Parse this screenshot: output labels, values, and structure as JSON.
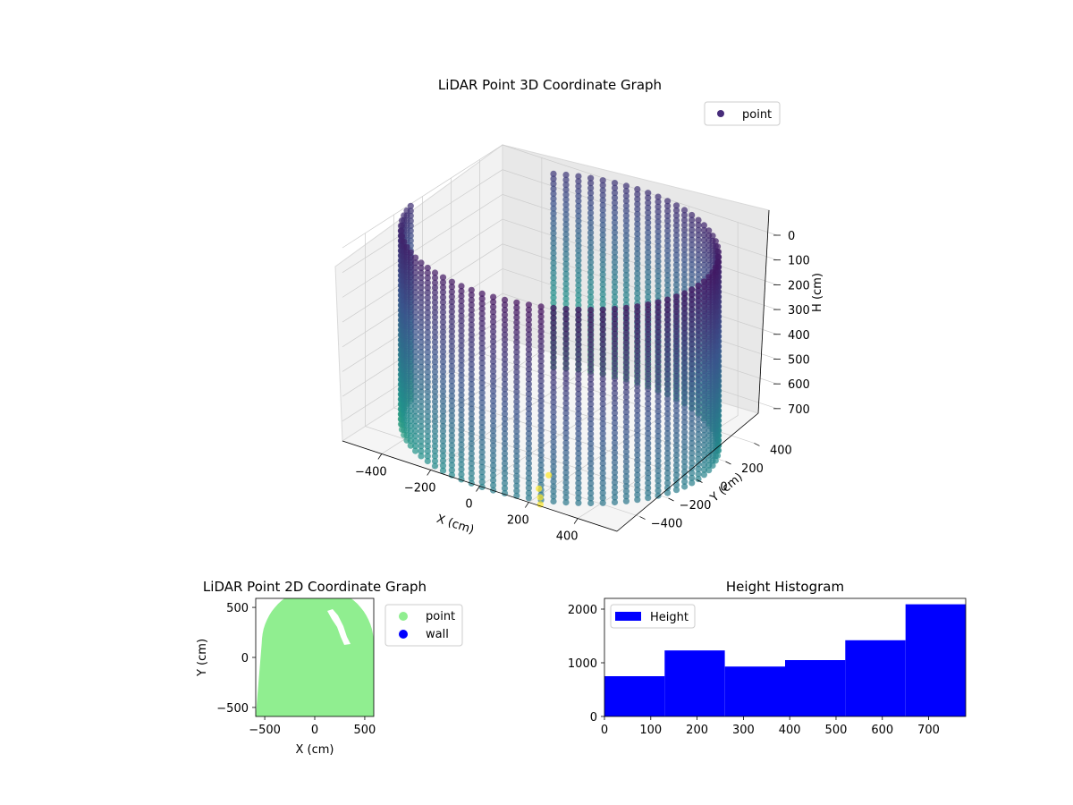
{
  "colors": {
    "scatter_cmap": [
      "#440154",
      "#3b528b",
      "#21918c",
      "#5ec962",
      "#fde725"
    ],
    "legend_point_3d": "#472c7a",
    "point_2d": "#90ee90",
    "wall_2d": "#0000ff",
    "histogram": "#0000ff"
  },
  "chart_data": [
    {
      "type": "scatter",
      "projection": "3d",
      "title": "LiDAR Point 3D Coordinate Graph",
      "xlabel": "X (cm)",
      "ylabel": "Y (cm)",
      "zlabel": "H (cm)",
      "x_ticks": [
        -400,
        -200,
        0,
        200,
        400
      ],
      "x_tick_labels": [
        "−400",
        "−200",
        "0",
        "200",
        "400"
      ],
      "y_ticks": [
        -400,
        -200,
        0,
        200,
        400
      ],
      "y_tick_labels": [
        "−400",
        "−200",
        "0",
        "200",
        "400"
      ],
      "z_ticks": [
        0,
        100,
        200,
        300,
        400,
        500,
        600,
        700
      ],
      "z_tick_labels": [
        "0",
        "100",
        "200",
        "300",
        "400",
        "500",
        "600",
        "700"
      ],
      "xlim": [
        -560,
        560
      ],
      "ylim": [
        -560,
        560
      ],
      "zlim": [
        0,
        780
      ],
      "z_inverted": true,
      "legend": {
        "entries": [
          "point"
        ],
        "position": "upper-right"
      },
      "grid": true,
      "point_cloud": {
        "shape": "cylindrical wall, radius ~560 cm, open at negative X",
        "radius": 560,
        "theta_range_deg": [
          -170,
          125
        ],
        "z_range": [
          0,
          780
        ],
        "z_step": 20,
        "angular_step_deg": 4.5
      },
      "extra_points": [
        {
          "x": 160,
          "y": -420,
          "h": 790
        },
        {
          "x": 200,
          "y": -480,
          "h": 790
        },
        {
          "x": 230,
          "y": -530,
          "h": 790
        },
        {
          "x": 130,
          "y": -300,
          "h": 790
        }
      ]
    },
    {
      "type": "scatter",
      "title": "LiDAR Point 2D Coordinate Graph",
      "xlabel": "X (cm)",
      "ylabel": "Y (cm)",
      "x_ticks": [
        -500,
        0,
        500
      ],
      "x_tick_labels": [
        "−500",
        "0",
        "500"
      ],
      "y_ticks": [
        -500,
        0,
        500
      ],
      "y_tick_labels": [
        "−500",
        "0",
        "500"
      ],
      "xlim": [
        -590,
        590
      ],
      "ylim": [
        -590,
        590
      ],
      "legend": {
        "entries": [
          "point",
          "wall"
        ],
        "position": "outside-right"
      },
      "series": [
        {
          "name": "point",
          "region": "filled floor area, clipped by circular wall at top"
        },
        {
          "name": "wall",
          "points": []
        }
      ]
    },
    {
      "type": "bar",
      "subtype": "histogram",
      "title": "Height Histogram",
      "xlabel": "",
      "ylabel": "",
      "bin_edges": [
        0,
        130,
        260,
        390,
        520,
        650,
        780
      ],
      "values": [
        750,
        1230,
        930,
        1050,
        1420,
        2090
      ],
      "x_ticks": [
        0,
        100,
        200,
        300,
        400,
        500,
        600,
        700
      ],
      "x_tick_labels": [
        "0",
        "100",
        "200",
        "300",
        "400",
        "500",
        "600",
        "700"
      ],
      "y_ticks": [
        0,
        1000,
        2000
      ],
      "y_tick_labels": [
        "0",
        "1000",
        "2000"
      ],
      "xlim": [
        0,
        780
      ],
      "ylim": [
        0,
        2200
      ],
      "legend": {
        "entries": [
          "Height"
        ],
        "position": "upper-left"
      }
    }
  ]
}
